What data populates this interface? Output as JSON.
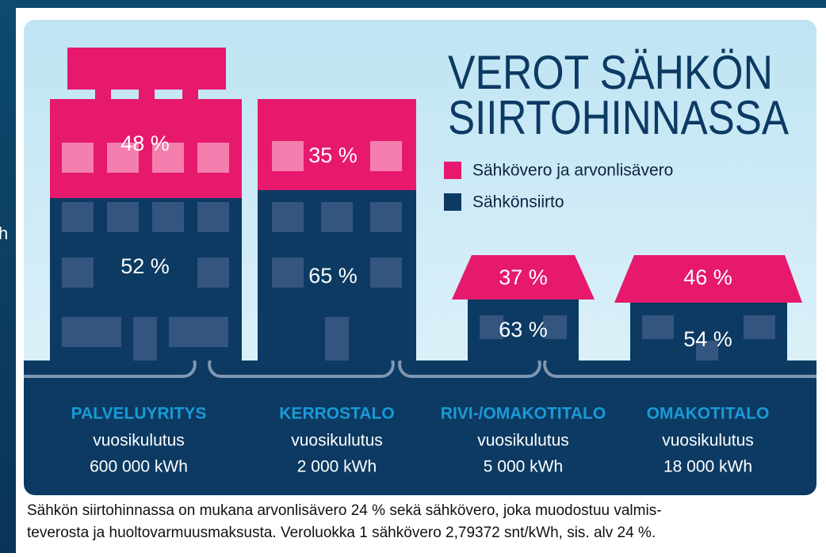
{
  "side_text": "h",
  "title": {
    "line1": "VEROT SÄHKÖN",
    "line2": "SIIRTOHINNASSA"
  },
  "legend": [
    "Sähkövero ja arvonlisävero",
    "Sähkönsiirto"
  ],
  "buildings": [
    {
      "name": "PALVELUYRITYS",
      "usage_label": "vuosikulutus",
      "usage": "600 000 kWh",
      "tax": "48 %",
      "transfer": "52 %"
    },
    {
      "name": "KERROSTALO",
      "usage_label": "vuosikulutus",
      "usage": "2 000 kWh",
      "tax": "35 %",
      "transfer": "65 %"
    },
    {
      "name": "RIVI-/OMAKOTITALO",
      "usage_label": "vuosikulutus",
      "usage": "5 000 kWh",
      "tax": "37 %",
      "transfer": "63 %"
    },
    {
      "name": "OMAKOTITALO",
      "usage_label": "vuosikulutus",
      "usage": "18 000 kWh",
      "tax": "46 %",
      "transfer": "54 %"
    }
  ],
  "footnote": [
    "Sähkön siirtohinnassa on mukana arvonlisävero 24 % sekä sähkövero, joka muodostuu valmis-",
    "teverosta ja huoltovarmuusmaksusta. Veroluokka 1 sähkövero 2,79372 snt/kWh, sis. alv 24 %."
  ]
}
